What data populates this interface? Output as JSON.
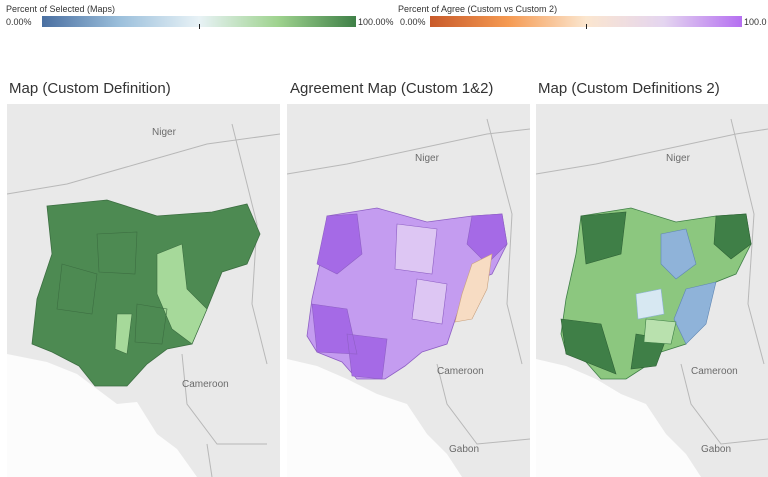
{
  "legends": {
    "selected": {
      "title": "Percent of Selected (Maps)",
      "min_label": "0.00%",
      "max_label": "100.00%",
      "colors": [
        "#4a6fa1",
        "#9cc0dc",
        "#e8f2f6",
        "#9fd38f",
        "#3f8047"
      ]
    },
    "agree": {
      "title": "Percent of Agree (Custom vs Custom 2)",
      "min_label": "0.00%",
      "max_label": "100.0",
      "colors": [
        "#c85a2a",
        "#f59a52",
        "#fbe6cf",
        "#e4d5f0",
        "#b56ff1"
      ]
    }
  },
  "panels": [
    {
      "title": "Map (Custom Definition)",
      "labels": {
        "niger": "Niger",
        "cameroon": "Cameroon"
      }
    },
    {
      "title": "Agreement Map (Custom 1&2)",
      "labels": {
        "niger": "Niger",
        "cameroon": "Cameroon",
        "gabon": "Gabon"
      }
    },
    {
      "title": "Map (Custom Definitions 2)",
      "labels": {
        "niger": "Niger",
        "cameroon": "Cameroon",
        "gabon": "Gabon"
      }
    }
  ],
  "colors": {
    "map_background": "#e9e9e9",
    "sea": "#fcfcfc",
    "border": "#b8b8b8",
    "map1_fill": "#4d8a52",
    "map1_light": "#a6d99a",
    "map2_fill": "#c49cf0",
    "map2_dark": "#a56ae6",
    "map2_light": "#ddc6f3",
    "map2_orange": "#f7dcc3",
    "map3_dark": "#3f7f47",
    "map3_mid": "#8cc77f",
    "map3_light": "#b9e1ae",
    "map3_blue": "#8fb3d9",
    "map3_paleblue": "#d7e8f2"
  }
}
